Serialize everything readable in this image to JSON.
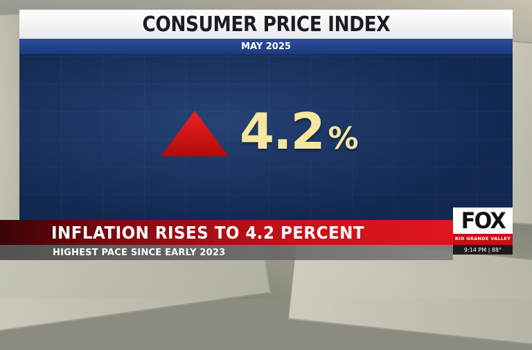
{
  "graphic": {
    "title": "CONSUMER PRICE INDEX",
    "subtitle": "MAY 2025",
    "value": "4.2",
    "unit": "%",
    "direction_icon": "up-triangle-icon",
    "colors": {
      "accent_up": "#d51414",
      "value_text": "#f5e6a0",
      "panel": "#17305f",
      "subtitle_bar": "#1c3a80"
    }
  },
  "lower_third": {
    "headline": "INFLATION RISES TO 4.2 PERCENT",
    "subheadline": "HIGHEST PACE SINCE EARLY 2023",
    "colors": {
      "headline_bar": "#c91119"
    }
  },
  "logo": {
    "brand": "FOX",
    "market": "RIO GRANDE VALLEY"
  },
  "status": {
    "time_temp": "9:14 PM | 88°"
  }
}
